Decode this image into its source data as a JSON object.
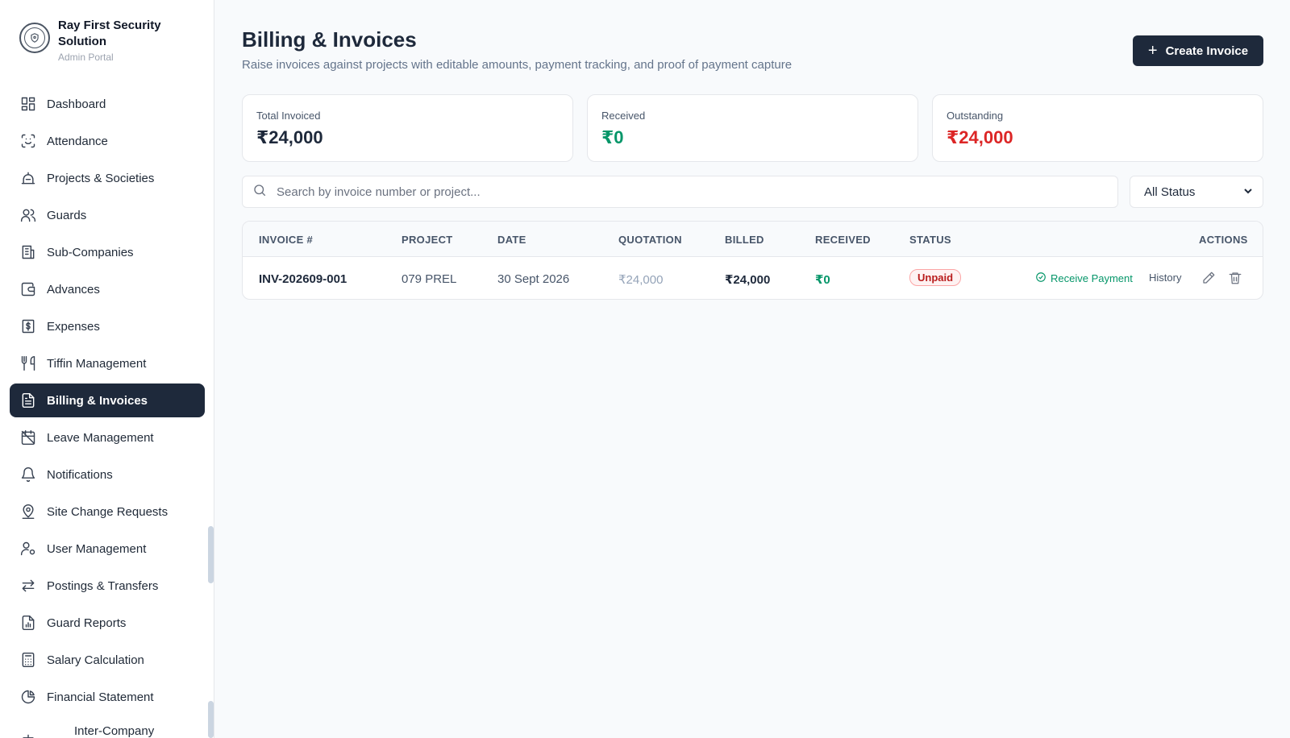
{
  "brand": {
    "name": "Ray First Security Solution",
    "subtitle": "Admin Portal"
  },
  "sidebar": {
    "items": [
      {
        "label": "Dashboard",
        "icon": "dashboard-icon"
      },
      {
        "label": "Attendance",
        "icon": "face-scan-icon"
      },
      {
        "label": "Projects & Societies",
        "icon": "building-icon"
      },
      {
        "label": "Guards",
        "icon": "users-icon"
      },
      {
        "label": "Sub-Companies",
        "icon": "office-icon"
      },
      {
        "label": "Advances",
        "icon": "wallet-icon"
      },
      {
        "label": "Expenses",
        "icon": "dollar-receipt-icon"
      },
      {
        "label": "Tiffin Management",
        "icon": "utensils-icon"
      },
      {
        "label": "Billing & Invoices",
        "icon": "file-text-icon",
        "active": true
      },
      {
        "label": "Leave Management",
        "icon": "calendar-off-icon"
      },
      {
        "label": "Notifications",
        "icon": "bell-icon"
      },
      {
        "label": "Site Change Requests",
        "icon": "map-pin-user-icon"
      },
      {
        "label": "User Management",
        "icon": "user-cog-icon"
      },
      {
        "label": "Postings & Transfers",
        "icon": "arrows-transfer-icon"
      },
      {
        "label": "Guard Reports",
        "icon": "file-chart-icon"
      },
      {
        "label": "Salary Calculation",
        "icon": "calculator-icon"
      },
      {
        "label": "Financial Statement",
        "icon": "pie-chart-icon"
      },
      {
        "label": "Inter-Company",
        "icon": "scale-icon"
      }
    ]
  },
  "header": {
    "title": "Billing & Invoices",
    "subtitle": "Raise invoices against projects with editable amounts, payment tracking, and proof of payment capture",
    "create_label": "Create Invoice"
  },
  "stats": {
    "total_invoiced": {
      "label": "Total Invoiced",
      "value": "₹24,000"
    },
    "received": {
      "label": "Received",
      "value": "₹0"
    },
    "outstanding": {
      "label": "Outstanding",
      "value": "₹24,000"
    }
  },
  "search": {
    "placeholder": "Search by invoice number or project...",
    "value": ""
  },
  "filter": {
    "selected": "All Status"
  },
  "table": {
    "headers": {
      "invoice": "INVOICE #",
      "project": "PROJECT",
      "date": "DATE",
      "quotation": "QUOTATION",
      "billed": "BILLED",
      "received": "RECEIVED",
      "status": "STATUS",
      "actions": "ACTIONS"
    },
    "rows": [
      {
        "invoice": "INV-202609-001",
        "project": "079 PREL",
        "date": "30 Sept 2026",
        "quotation": "₹24,000",
        "billed": "₹24,000",
        "received": "₹0",
        "status": "Unpaid",
        "receive_label": "Receive Payment",
        "history_label": "History"
      }
    ]
  },
  "colors": {
    "primary": "#1e293b",
    "success": "#059669",
    "danger": "#dc2626",
    "background": "#f8fafc"
  }
}
